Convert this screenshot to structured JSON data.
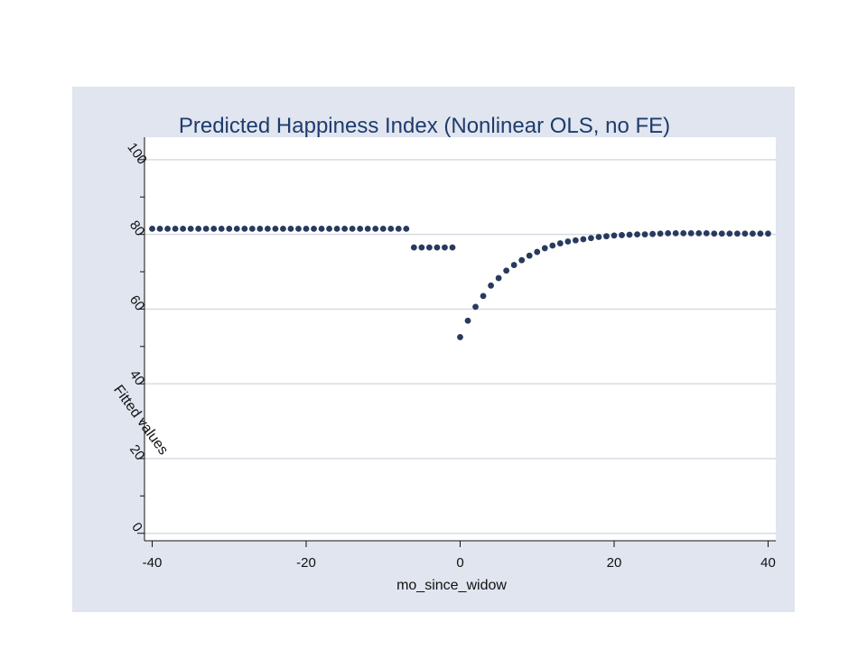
{
  "chart_data": {
    "type": "scatter",
    "title": "Predicted Happiness Index (Nonlinear OLS, no FE)",
    "xlabel": "mo_since_widow",
    "ylabel": "Fitted values",
    "xlim": [
      -41,
      41
    ],
    "ylim": [
      -2,
      106
    ],
    "xticks": [
      -40,
      -20,
      0,
      20,
      40
    ],
    "yticks": [
      0,
      20,
      40,
      60,
      80,
      100
    ],
    "grid": true,
    "legend": "none",
    "series": [
      {
        "marker_color": "#283a5e",
        "points": [
          [
            -40,
            81.5
          ],
          [
            -39,
            81.5
          ],
          [
            -38,
            81.5
          ],
          [
            -37,
            81.5
          ],
          [
            -36,
            81.5
          ],
          [
            -35,
            81.5
          ],
          [
            -34,
            81.5
          ],
          [
            -33,
            81.5
          ],
          [
            -32,
            81.5
          ],
          [
            -31,
            81.5
          ],
          [
            -30,
            81.5
          ],
          [
            -29,
            81.5
          ],
          [
            -28,
            81.5
          ],
          [
            -27,
            81.5
          ],
          [
            -26,
            81.5
          ],
          [
            -25,
            81.5
          ],
          [
            -24,
            81.5
          ],
          [
            -23,
            81.5
          ],
          [
            -22,
            81.5
          ],
          [
            -21,
            81.5
          ],
          [
            -20,
            81.5
          ],
          [
            -19,
            81.5
          ],
          [
            -18,
            81.5
          ],
          [
            -17,
            81.5
          ],
          [
            -16,
            81.5
          ],
          [
            -15,
            81.5
          ],
          [
            -14,
            81.5
          ],
          [
            -13,
            81.5
          ],
          [
            -12,
            81.5
          ],
          [
            -11,
            81.5
          ],
          [
            -10,
            81.5
          ],
          [
            -9,
            81.5
          ],
          [
            -8,
            81.5
          ],
          [
            -7,
            81.5
          ],
          [
            -6,
            76.5
          ],
          [
            -5,
            76.5
          ],
          [
            -4,
            76.5
          ],
          [
            -3,
            76.5
          ],
          [
            -2,
            76.5
          ],
          [
            -1,
            76.5
          ],
          [
            0,
            52.5
          ],
          [
            1,
            56.9
          ],
          [
            2,
            60.6
          ],
          [
            3,
            63.5
          ],
          [
            4,
            66.3
          ],
          [
            5,
            68.3
          ],
          [
            6,
            70.3
          ],
          [
            7,
            71.8
          ],
          [
            8,
            73.1
          ],
          [
            9,
            74.3
          ],
          [
            10,
            75.3
          ],
          [
            11,
            76.3
          ],
          [
            12,
            77.0
          ],
          [
            13,
            77.6
          ],
          [
            14,
            78.1
          ],
          [
            15,
            78.4
          ],
          [
            16,
            78.7
          ],
          [
            17,
            79.0
          ],
          [
            18,
            79.3
          ],
          [
            19,
            79.5
          ],
          [
            20,
            79.7
          ],
          [
            21,
            79.8
          ],
          [
            22,
            79.9
          ],
          [
            23,
            80.0
          ],
          [
            24,
            80.0
          ],
          [
            25,
            80.1
          ],
          [
            26,
            80.2
          ],
          [
            27,
            80.3
          ],
          [
            28,
            80.3
          ],
          [
            29,
            80.3
          ],
          [
            30,
            80.3
          ],
          [
            31,
            80.3
          ],
          [
            32,
            80.3
          ],
          [
            33,
            80.2
          ],
          [
            34,
            80.2
          ],
          [
            35,
            80.2
          ],
          [
            36,
            80.2
          ],
          [
            37,
            80.2
          ],
          [
            38,
            80.2
          ],
          [
            39,
            80.2
          ],
          [
            40,
            80.2
          ]
        ]
      }
    ],
    "colors": {
      "outer_background": "#e0e5ef",
      "plot_background": "#ffffff",
      "grid": "#d6dbe5",
      "title": "#1f3b6e",
      "axis": "#111111"
    }
  }
}
